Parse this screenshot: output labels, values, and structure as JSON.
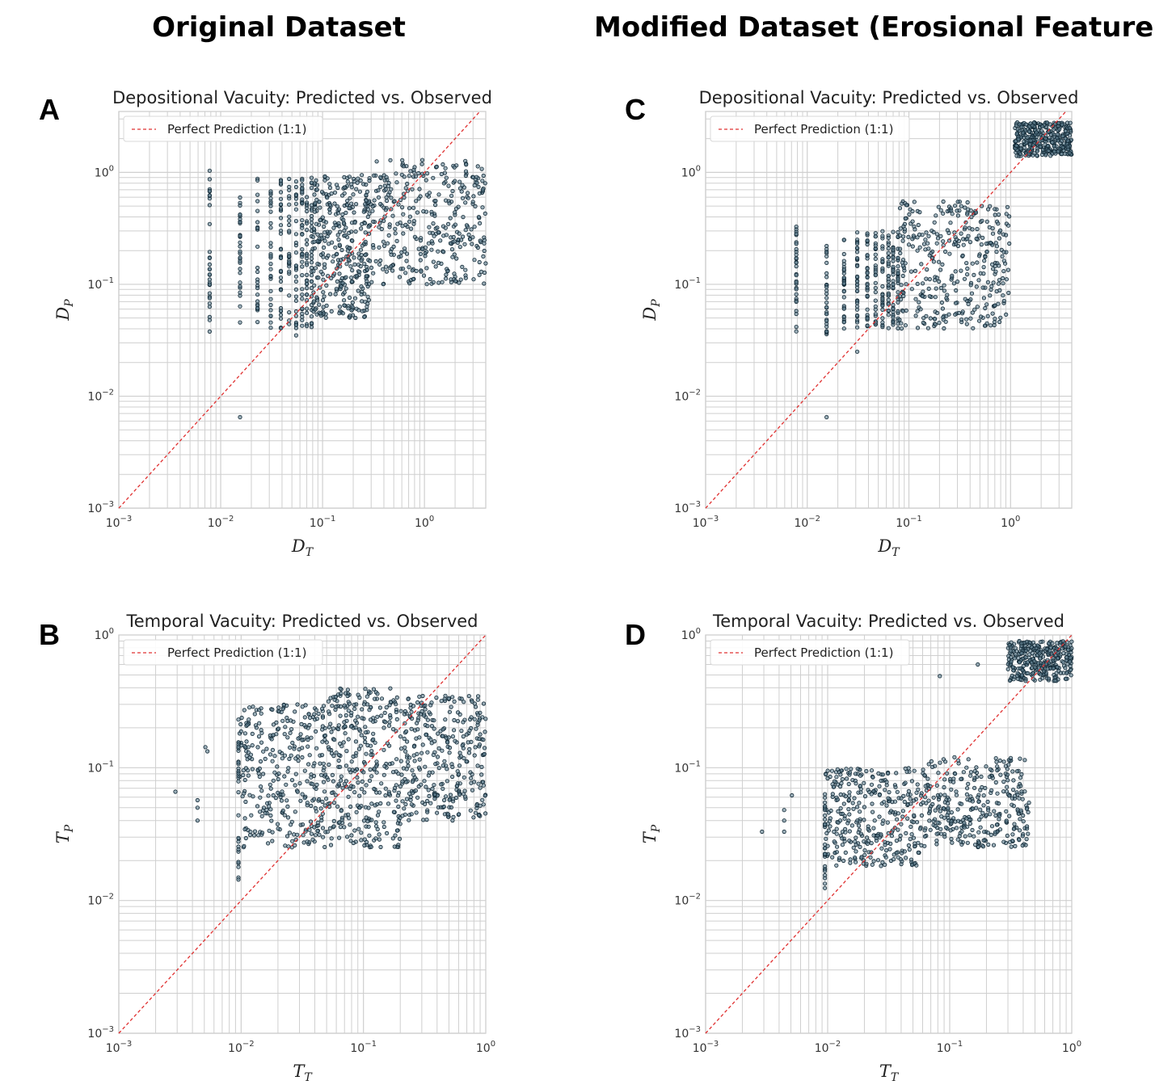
{
  "columns": {
    "left_title": "Original Dataset",
    "right_title": "Modified Dataset (Erosional Feature)"
  },
  "colors": {
    "points": "#5f7f8f",
    "point_edge": "#0f2633",
    "identity_line": "#e03030",
    "grid": "#cfcfcf",
    "frame": "#cfcfcf"
  },
  "chart_data": [
    {
      "panel_label": "A",
      "type": "scatter",
      "title": "Depositional Vacuity: Predicted vs. Observed",
      "xlabel_base": "D",
      "xlabel_sub": "T",
      "ylabel_base": "D",
      "ylabel_sub": "P",
      "xscale": "log",
      "yscale": "log",
      "xlim": [
        0.001,
        4
      ],
      "ylim": [
        0.001,
        3.5
      ],
      "xtick_values": [
        0.001,
        0.01,
        0.1,
        1
      ],
      "ytick_values": [
        0.001,
        0.01,
        0.1,
        1
      ],
      "xticks": [
        {
          "base": "10",
          "exp": "−3"
        },
        {
          "base": "10",
          "exp": "−2"
        },
        {
          "base": "10",
          "exp": "−1"
        },
        {
          "base": "10",
          "exp": "0"
        }
      ],
      "yticks": [
        {
          "base": "10",
          "exp": "−3"
        },
        {
          "base": "10",
          "exp": "−2"
        },
        {
          "base": "10",
          "exp": "−1"
        },
        {
          "base": "10",
          "exp": "0"
        }
      ],
      "legend": "Perfect Prediction (1:1)",
      "legend_loc": "upper-left",
      "grid": true,
      "reference_line": "y = x",
      "points_total_approx": 1000,
      "clusters": [
        {
          "x_discrete": [
            0.0078
          ],
          "y_range": [
            0.035,
            1.05
          ]
        },
        {
          "x_discrete": [
            0.0155
          ],
          "y_range": [
            0.045,
            0.6
          ]
        },
        {
          "x_discrete": [
            0.023,
            0.031,
            0.039,
            0.047,
            0.055,
            0.063,
            0.07,
            0.078
          ],
          "y_range": [
            0.04,
            0.9
          ]
        },
        {
          "x_range": [
            0.08,
            0.3
          ],
          "y_range": [
            0.05,
            1.0
          ]
        },
        {
          "x_range": [
            0.3,
            4.0
          ],
          "y_range": [
            0.1,
            1.3
          ]
        }
      ],
      "outliers": [
        {
          "x": 0.0155,
          "y": 0.0065
        },
        {
          "x": 0.055,
          "y": 0.035
        },
        {
          "x": 0.078,
          "y": 0.045
        }
      ]
    },
    {
      "panel_label": "B",
      "type": "scatter",
      "title": "Temporal Vacuity: Predicted vs. Observed",
      "xlabel_base": "T",
      "xlabel_sub": "T",
      "ylabel_base": "T",
      "ylabel_sub": "P",
      "xscale": "log",
      "yscale": "log",
      "xlim": [
        0.001,
        1
      ],
      "ylim": [
        0.001,
        1
      ],
      "xtick_values": [
        0.001,
        0.01,
        0.1,
        1
      ],
      "ytick_values": [
        0.001,
        0.01,
        0.1,
        1
      ],
      "xticks": [
        {
          "base": "10",
          "exp": "−3"
        },
        {
          "base": "10",
          "exp": "−2"
        },
        {
          "base": "10",
          "exp": "−1"
        },
        {
          "base": "10",
          "exp": "0"
        }
      ],
      "yticks": [
        {
          "base": "10",
          "exp": "−3"
        },
        {
          "base": "10",
          "exp": "−2"
        },
        {
          "base": "10",
          "exp": "−1"
        },
        {
          "base": "10",
          "exp": "0"
        }
      ],
      "legend": "Perfect Prediction (1:1)",
      "legend_loc": "upper-left",
      "grid": true,
      "reference_line": "y = x",
      "points_total_approx": 1000,
      "clusters": [
        {
          "x_range": [
            0.0095,
            0.05
          ],
          "y_range": [
            0.025,
            0.3
          ]
        },
        {
          "x_range": [
            0.05,
            0.2
          ],
          "y_range": [
            0.025,
            0.4
          ]
        },
        {
          "x_range": [
            0.2,
            1.0
          ],
          "y_range": [
            0.04,
            0.35
          ]
        },
        {
          "x_discrete": [
            0.0095
          ],
          "y_range": [
            0.012,
            0.27
          ]
        }
      ],
      "outliers": [
        {
          "x": 0.0029,
          "y": 0.066
        },
        {
          "x": 0.0044,
          "y": 0.057
        },
        {
          "x": 0.0044,
          "y": 0.05
        },
        {
          "x": 0.0044,
          "y": 0.04
        },
        {
          "x": 0.0051,
          "y": 0.143
        },
        {
          "x": 0.0053,
          "y": 0.133
        }
      ]
    },
    {
      "panel_label": "C",
      "type": "scatter",
      "title": "Depositional Vacuity: Predicted vs. Observed",
      "xlabel_base": "D",
      "xlabel_sub": "T",
      "ylabel_base": "D",
      "ylabel_sub": "P",
      "xscale": "log",
      "yscale": "log",
      "xlim": [
        0.001,
        4
      ],
      "ylim": [
        0.001,
        3.5
      ],
      "xtick_values": [
        0.001,
        0.01,
        0.1,
        1
      ],
      "ytick_values": [
        0.001,
        0.01,
        0.1,
        1
      ],
      "xticks": [
        {
          "base": "10",
          "exp": "−3"
        },
        {
          "base": "10",
          "exp": "−2"
        },
        {
          "base": "10",
          "exp": "−1"
        },
        {
          "base": "10",
          "exp": "0"
        }
      ],
      "yticks": [
        {
          "base": "10",
          "exp": "−3"
        },
        {
          "base": "10",
          "exp": "−2"
        },
        {
          "base": "10",
          "exp": "−1"
        },
        {
          "base": "10",
          "exp": "0"
        }
      ],
      "legend": "Perfect Prediction (1:1)",
      "legend_loc": "upper-left",
      "grid": true,
      "reference_line": "y = x",
      "points_total_approx": 1000,
      "clusters": [
        {
          "x_discrete": [
            0.0078
          ],
          "y_range": [
            0.035,
            0.35
          ]
        },
        {
          "x_discrete": [
            0.0155
          ],
          "y_range": [
            0.035,
            0.22
          ]
        },
        {
          "x_discrete": [
            0.023,
            0.031,
            0.039,
            0.047,
            0.055,
            0.063,
            0.07,
            0.078
          ],
          "y_range": [
            0.04,
            0.3
          ]
        },
        {
          "x_range": [
            0.08,
            1.0
          ],
          "y_range": [
            0.04,
            0.55
          ]
        },
        {
          "x_range": [
            1.1,
            4.0
          ],
          "y_range": [
            1.4,
            2.8
          ]
        }
      ],
      "outliers": [
        {
          "x": 0.0155,
          "y": 0.0065
        },
        {
          "x": 0.031,
          "y": 0.025
        }
      ]
    },
    {
      "panel_label": "D",
      "type": "scatter",
      "title": "Temporal Vacuity: Predicted vs. Observed",
      "xlabel_base": "T",
      "xlabel_sub": "T",
      "ylabel_base": "T",
      "ylabel_sub": "P",
      "xscale": "log",
      "yscale": "log",
      "xlim": [
        0.001,
        1
      ],
      "ylim": [
        0.001,
        1
      ],
      "xtick_values": [
        0.001,
        0.01,
        0.1,
        1
      ],
      "ytick_values": [
        0.001,
        0.01,
        0.1,
        1
      ],
      "xticks": [
        {
          "base": "10",
          "exp": "−3"
        },
        {
          "base": "10",
          "exp": "−2"
        },
        {
          "base": "10",
          "exp": "−1"
        },
        {
          "base": "10",
          "exp": "0"
        }
      ],
      "yticks": [
        {
          "base": "10",
          "exp": "−3"
        },
        {
          "base": "10",
          "exp": "−2"
        },
        {
          "base": "10",
          "exp": "−1"
        },
        {
          "base": "10",
          "exp": "0"
        }
      ],
      "legend": "Perfect Prediction (1:1)",
      "legend_loc": "upper-left",
      "grid": true,
      "reference_line": "y = x",
      "points_total_approx": 1000,
      "clusters": [
        {
          "x_range": [
            0.0095,
            0.06
          ],
          "y_range": [
            0.018,
            0.1
          ]
        },
        {
          "x_range": [
            0.06,
            0.45
          ],
          "y_range": [
            0.025,
            0.12
          ]
        },
        {
          "x_discrete": [
            0.0095
          ],
          "y_range": [
            0.012,
            0.07
          ]
        },
        {
          "x_range": [
            0.3,
            1.0
          ],
          "y_range": [
            0.45,
            0.9
          ]
        }
      ],
      "outliers": [
        {
          "x": 0.0029,
          "y": 0.033
        },
        {
          "x": 0.0044,
          "y": 0.048
        },
        {
          "x": 0.0044,
          "y": 0.04
        },
        {
          "x": 0.0044,
          "y": 0.033
        },
        {
          "x": 0.0051,
          "y": 0.062
        },
        {
          "x": 0.083,
          "y": 0.49
        },
        {
          "x": 0.17,
          "y": 0.6
        }
      ]
    }
  ]
}
